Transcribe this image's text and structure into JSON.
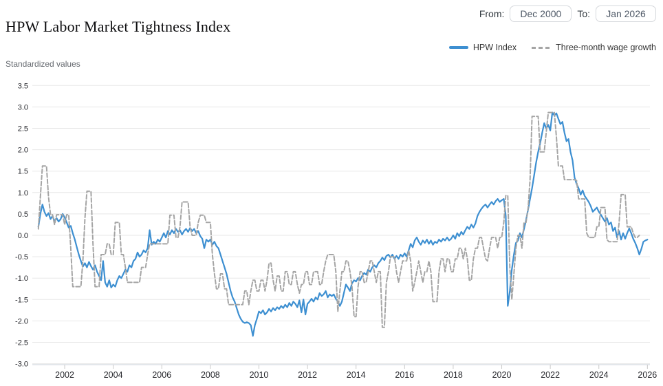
{
  "header": {
    "title": "HPW Labor Market Tightness Index"
  },
  "controls": {
    "from_label": "From:",
    "from_value": "Dec 2000",
    "to_label": "To:",
    "to_value": "Jan 2026"
  },
  "colors": {
    "hpw_line": "#3d8fd1",
    "wage_line": "#a5a5a5",
    "grid": "#e7e7e7",
    "axis_line": "#ccd2dc",
    "tick": "#c9c9c9",
    "axis_text": "#25262b"
  },
  "chart_data": {
    "type": "line",
    "title": "HPW Labor Market Tightness Index",
    "ylabel": "Standardized values",
    "xlabel": "",
    "frequency": "monthly",
    "x_start": "2000-12",
    "x_end": "2026-01",
    "ylim": [
      -3.0,
      3.5
    ],
    "grid": "horizontal",
    "legend_position": "top-right",
    "yticks": [
      "3.5",
      "3.0",
      "2.5",
      "2.0",
      "1.5",
      "1.0",
      "0.5",
      "0.0",
      "-0.5",
      "-1.0",
      "-1.5",
      "-2.0",
      "-2.5",
      "-3.0"
    ],
    "xticks": [
      2002,
      2004,
      2006,
      2008,
      2010,
      2012,
      2014,
      2016,
      2018,
      2020,
      2022,
      2024,
      2026
    ],
    "series": [
      {
        "name": "HPW Index",
        "color": "#3d8fd1",
        "style": "solid",
        "start": "2000-12",
        "values": [
          0.2,
          0.5,
          0.72,
          0.55,
          0.45,
          0.52,
          0.38,
          0.45,
          0.33,
          0.4,
          0.32,
          0.38,
          0.5,
          0.42,
          0.3,
          0.18,
          0.22,
          0.05,
          -0.1,
          -0.28,
          -0.45,
          -0.6,
          -0.73,
          -0.65,
          -0.75,
          -0.62,
          -0.72,
          -0.8,
          -0.7,
          -0.85,
          -0.95,
          -1.05,
          -0.6,
          -1.1,
          -1.2,
          -1.05,
          -1.22,
          -1.15,
          -1.2,
          -1.05,
          -0.95,
          -1.0,
          -0.9,
          -0.8,
          -0.85,
          -0.7,
          -0.75,
          -0.6,
          -0.55,
          -0.4,
          -0.5,
          -0.45,
          -0.35,
          -0.4,
          -0.3,
          0.12,
          -0.22,
          -0.15,
          -0.2,
          -0.1,
          -0.15,
          -0.05,
          0.05,
          -0.05,
          0.1,
          0.02,
          0.12,
          0.05,
          0.15,
          0.08,
          0.12,
          0.02,
          0.1,
          0.15,
          0.08,
          0.17,
          0.1,
          0.15,
          0.05,
          0.1,
          -0.02,
          -0.08,
          -0.3,
          -0.1,
          -0.15,
          -0.1,
          -0.22,
          -0.15,
          -0.25,
          -0.3,
          -0.45,
          -0.6,
          -0.75,
          -0.9,
          -1.1,
          -1.3,
          -1.45,
          -1.55,
          -1.7,
          -1.85,
          -1.95,
          -2.02,
          -2.05,
          -2.03,
          -2.05,
          -2.1,
          -2.35,
          -2.1,
          -1.95,
          -1.78,
          -1.82,
          -1.75,
          -1.85,
          -1.8,
          -1.72,
          -1.78,
          -1.7,
          -1.75,
          -1.68,
          -1.72,
          -1.65,
          -1.7,
          -1.62,
          -1.68,
          -1.58,
          -1.65,
          -1.55,
          -1.6,
          -1.68,
          -1.52,
          -1.8,
          -1.5,
          -1.85,
          -1.6,
          -1.55,
          -1.48,
          -1.55,
          -1.45,
          -1.5,
          -1.35,
          -1.42,
          -1.38,
          -1.3,
          -1.45,
          -1.38,
          -1.42,
          -1.38,
          -1.48,
          -1.55,
          -1.65,
          -1.55,
          -1.35,
          -1.15,
          -1.22,
          -1.3,
          -1.12,
          -1.05,
          -1.08,
          -1.0,
          -1.05,
          -0.95,
          -0.88,
          -0.92,
          -0.8,
          -0.85,
          -0.75,
          -0.7,
          -0.75,
          -0.65,
          -0.6,
          -0.52,
          -0.58,
          -0.48,
          -0.45,
          -0.52,
          -0.45,
          -0.55,
          -0.48,
          -0.55,
          -0.45,
          -0.5,
          -0.42,
          -0.5,
          -0.35,
          -0.2,
          -0.28,
          -0.12,
          -0.05,
          -0.15,
          -0.22,
          -0.12,
          -0.18,
          -0.1,
          -0.2,
          -0.12,
          -0.22,
          -0.15,
          -0.18,
          -0.1,
          -0.15,
          -0.08,
          -0.12,
          -0.05,
          -0.12,
          -0.08,
          0.0,
          -0.08,
          0.05,
          -0.02,
          0.08,
          0.02,
          0.12,
          0.2,
          0.15,
          0.25,
          0.18,
          0.28,
          0.45,
          0.55,
          0.62,
          0.68,
          0.72,
          0.65,
          0.72,
          0.78,
          0.72,
          0.8,
          0.85,
          0.78,
          0.82,
          0.85,
          0.45,
          -1.65,
          -1.3,
          -0.8,
          -0.45,
          -0.18,
          -0.12,
          0.05,
          -0.05,
          0.15,
          0.35,
          0.6,
          0.85,
          1.1,
          1.4,
          1.7,
          1.95,
          2.15,
          2.4,
          2.62,
          2.5,
          2.58,
          2.45,
          2.87,
          2.8,
          2.85,
          2.72,
          2.6,
          2.65,
          2.4,
          2.2,
          2.25,
          1.95,
          1.75,
          1.35,
          1.2,
          1.1,
          0.95,
          1.05,
          0.92,
          0.85,
          0.78,
          0.68,
          0.55,
          0.6,
          0.65,
          0.55,
          0.48,
          0.4,
          0.32,
          0.4,
          0.25,
          0.3,
          0.1,
          0.18,
          -0.05,
          0.1,
          -0.1,
          0.05,
          -0.08,
          0.05,
          0.16,
          0.05,
          -0.08,
          -0.18,
          -0.3,
          -0.45,
          -0.32,
          -0.15,
          -0.12,
          -0.1
        ]
      },
      {
        "name": "Three-month wage growth",
        "color": "#a5a5a5",
        "style": "dashed",
        "start": "2000-12",
        "values": [
          0.15,
          0.9,
          1.62,
          1.62,
          1.62,
          0.9,
          0.48,
          0.48,
          0.25,
          0.48,
          0.48,
          0.48,
          0.48,
          0.25,
          0.48,
          0.48,
          -0.3,
          -1.2,
          -1.2,
          -1.2,
          -1.2,
          -1.2,
          -0.6,
          0.4,
          1.03,
          1.03,
          1.03,
          -0.2,
          -1.2,
          -1.2,
          -1.2,
          -0.45,
          -0.45,
          -0.45,
          -0.2,
          -0.2,
          -0.45,
          -0.45,
          0.3,
          0.3,
          0.3,
          -0.45,
          -0.45,
          -0.75,
          -1.1,
          -1.1,
          -1.1,
          -1.1,
          -1.1,
          -1.1,
          -1.1,
          -0.75,
          -0.75,
          -0.75,
          -0.45,
          -0.2,
          -0.2,
          -0.2,
          -0.2,
          -0.2,
          -0.2,
          -0.2,
          -0.2,
          -0.2,
          -0.2,
          0.47,
          0.47,
          0.47,
          -0.05,
          -0.05,
          0.2,
          0.78,
          0.78,
          0.78,
          0.78,
          0.2,
          0.0,
          0.0,
          0.0,
          0.3,
          0.47,
          0.47,
          0.47,
          0.3,
          0.3,
          0.3,
          -0.45,
          -0.9,
          -1.25,
          -1.25,
          -0.9,
          -0.9,
          -1.25,
          -1.25,
          -1.62,
          -1.62,
          -1.62,
          -1.62,
          -1.62,
          -1.62,
          -1.62,
          -1.62,
          -1.3,
          -1.3,
          -1.62,
          -1.3,
          -1.05,
          -1.05,
          -1.3,
          -1.3,
          -1.05,
          -1.05,
          -1.3,
          -1.05,
          -0.65,
          -0.65,
          -1.05,
          -1.3,
          -0.95,
          -0.95,
          -1.3,
          -1.3,
          -0.85,
          -0.85,
          -1.15,
          -1.15,
          -0.85,
          -0.85,
          -1.15,
          -1.35,
          -1.15,
          -1.15,
          -0.85,
          -0.85,
          -1.15,
          -1.15,
          -0.85,
          -0.85,
          -0.85,
          -1.15,
          -1.15,
          -0.85,
          -0.6,
          -0.45,
          -0.45,
          -0.45,
          -0.45,
          -0.85,
          -1.78,
          -1.3,
          -0.85,
          -0.85,
          -0.6,
          -0.6,
          -0.85,
          -1.2,
          -1.9,
          -1.9,
          -1.2,
          -0.85,
          -0.85,
          -1.1,
          -1.1,
          -0.85,
          -0.6,
          -0.6,
          -0.85,
          -1.1,
          -0.85,
          -0.85,
          -2.15,
          -2.15,
          -1.1,
          -0.85,
          -0.5,
          -0.5,
          -0.5,
          -0.85,
          -1.1,
          -0.85,
          -0.6,
          -0.6,
          -0.6,
          -0.35,
          -0.6,
          -1.3,
          -1.1,
          -0.85,
          -0.6,
          -0.85,
          -1.1,
          -0.85,
          -0.85,
          -0.6,
          -0.85,
          -1.55,
          -1.55,
          -1.55,
          -0.85,
          -0.55,
          -0.55,
          -0.85,
          -0.55,
          -0.55,
          -0.85,
          -0.85,
          -0.55,
          -0.55,
          -0.3,
          -0.3,
          -0.55,
          -0.3,
          -0.55,
          -1.05,
          -1.05,
          -0.55,
          -0.3,
          -0.3,
          -0.05,
          -0.05,
          -0.3,
          -0.55,
          -0.6,
          -0.3,
          -0.05,
          -0.05,
          -0.05,
          -0.3,
          -0.05,
          -0.05,
          0.3,
          0.93,
          0.93,
          -0.75,
          -1.5,
          -0.9,
          -0.3,
          0.0,
          0.0,
          -0.3,
          0.3,
          0.3,
          0.62,
          1.3,
          2.78,
          2.78,
          2.78,
          2.78,
          1.95,
          1.95,
          1.95,
          2.4,
          2.87,
          2.87,
          2.87,
          2.87,
          2.3,
          1.62,
          1.62,
          1.62,
          1.3,
          1.3,
          1.3,
          1.3,
          1.3,
          1.3,
          1.28,
          0.85,
          0.85,
          0.85,
          0.85,
          0.05,
          -0.05,
          -0.05,
          -0.05,
          -0.05,
          0.2,
          0.2,
          0.65,
          0.65,
          0.65,
          -0.1,
          -0.15,
          -0.15,
          -0.15,
          -0.15,
          -0.15,
          0.3,
          0.95,
          0.95,
          0.95,
          0.2,
          0.2,
          0.2,
          0.05,
          -0.05,
          -0.05,
          0.0
        ]
      }
    ]
  }
}
